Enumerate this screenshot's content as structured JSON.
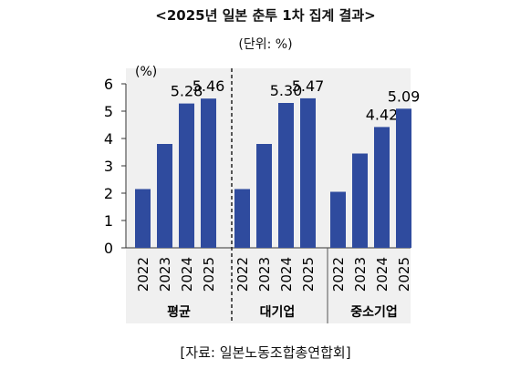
{
  "title": "<2025년 일본 춘투 1차 집계 결과>",
  "unit": "(단위: %)",
  "source": "[자료: 일본노동조합총연합회]",
  "chart_data": {
    "type": "bar",
    "yaxis_unit_label": "(%)",
    "ylim": [
      0,
      6
    ],
    "yticks": [
      "0",
      "1",
      "2",
      "3",
      "4",
      "5",
      "6"
    ],
    "categories": [
      "2022",
      "2023",
      "2024",
      "2025"
    ],
    "bar_color": "#2f4b9e",
    "groups": [
      {
        "name": "평균",
        "values": [
          2.15,
          3.8,
          5.28,
          5.46
        ],
        "data_labels": [
          "",
          "",
          "5.28",
          "5.46"
        ]
      },
      {
        "name": "대기업",
        "values": [
          2.15,
          3.8,
          5.3,
          5.47
        ],
        "data_labels": [
          "",
          "",
          "5.30",
          "5.47"
        ]
      },
      {
        "name": "중소기업",
        "values": [
          2.05,
          3.45,
          4.42,
          5.09
        ],
        "data_labels": [
          "",
          "",
          "4.42",
          "5.09"
        ]
      }
    ]
  }
}
